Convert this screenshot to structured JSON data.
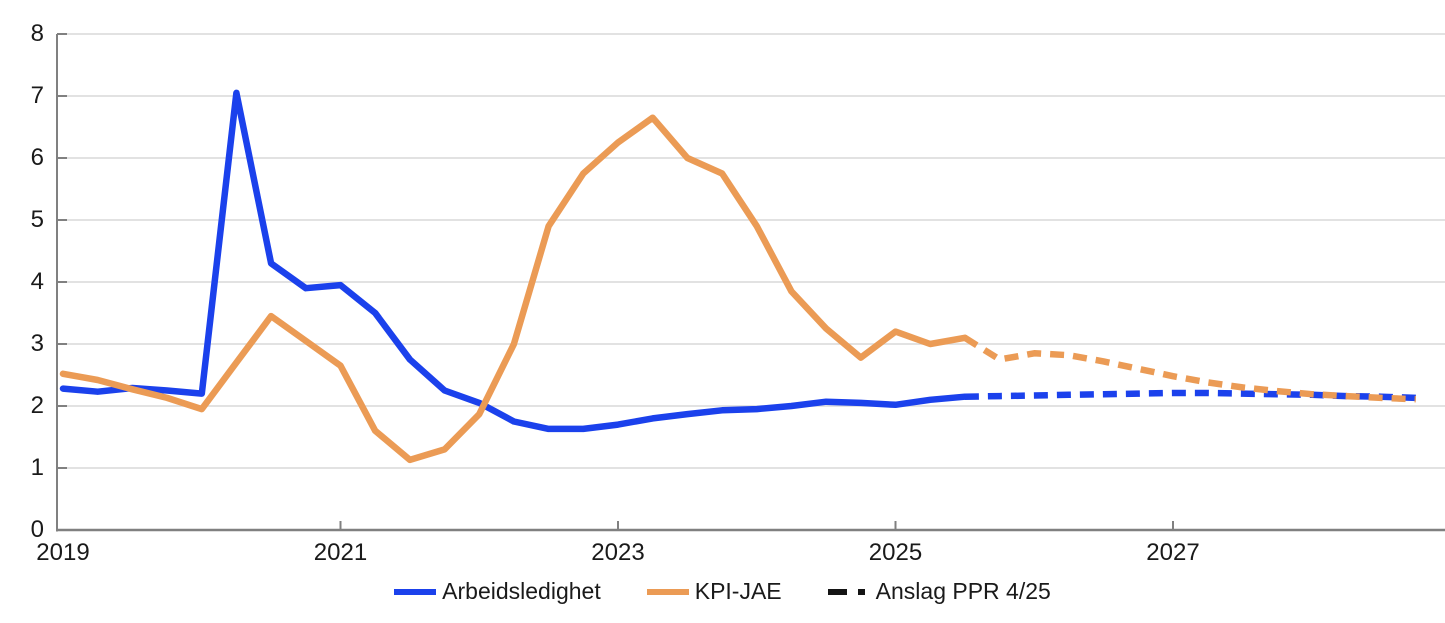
{
  "chart_data": {
    "type": "line",
    "title": "",
    "xlabel": "",
    "ylabel": "",
    "ylim": [
      0,
      8
    ],
    "xlim": [
      2019.0,
      2028.96
    ],
    "yticks": [
      "0",
      "1",
      "2",
      "3",
      "4",
      "5",
      "6",
      "7",
      "8"
    ],
    "ytick_values": [
      0,
      1,
      2,
      3,
      4,
      5,
      6,
      7,
      8
    ],
    "xticks": [
      "2019",
      "2021",
      "2023",
      "2025",
      "2027"
    ],
    "xtick_values": [
      2019,
      2021,
      2023,
      2025,
      2027
    ],
    "grid": true,
    "legend_position": "bottom-center",
    "series": [
      {
        "name": "Arbeidsledighet",
        "style": "solid",
        "color": "#1b41ec",
        "x": [
          2019.0,
          2019.25,
          2019.5,
          2019.75,
          2020.0,
          2020.25,
          2020.5,
          2020.75,
          2021.0,
          2021.25,
          2021.5,
          2021.75,
          2022.0,
          2022.25,
          2022.5,
          2022.75,
          2023.0,
          2023.25,
          2023.5,
          2023.75,
          2024.0,
          2024.25,
          2024.5,
          2024.75,
          2025.0,
          2025.25,
          2025.5
        ],
        "values": [
          2.28,
          2.23,
          2.29,
          2.25,
          2.2,
          7.05,
          4.3,
          3.9,
          3.95,
          3.5,
          2.75,
          2.25,
          2.05,
          1.75,
          1.63,
          1.63,
          1.7,
          1.8,
          1.87,
          1.93,
          1.95,
          2.0,
          2.07,
          2.05,
          2.02,
          2.1,
          2.15
        ]
      },
      {
        "name": "KPI-JAE",
        "style": "solid",
        "color": "#eb9b55",
        "x": [
          2019.0,
          2019.25,
          2019.5,
          2019.75,
          2020.0,
          2020.25,
          2020.5,
          2020.75,
          2021.0,
          2021.25,
          2021.5,
          2021.75,
          2022.0,
          2022.25,
          2022.5,
          2022.75,
          2023.0,
          2023.25,
          2023.5,
          2023.75,
          2024.0,
          2024.25,
          2024.5,
          2024.75,
          2025.0,
          2025.25,
          2025.5
        ],
        "values": [
          2.52,
          2.42,
          2.27,
          2.13,
          1.95,
          2.7,
          3.45,
          3.05,
          2.65,
          1.6,
          1.13,
          1.3,
          1.87,
          3.0,
          4.9,
          5.75,
          6.25,
          6.65,
          6.0,
          5.75,
          4.9,
          3.85,
          3.25,
          2.78,
          3.2,
          3.0,
          3.1
        ]
      },
      {
        "name": "Arbeidsledighet anslag PPR 4/25",
        "style": "dashed",
        "color": "#1b41ec",
        "x": [
          2025.5,
          2025.75,
          2026.0,
          2026.25,
          2026.5,
          2026.75,
          2027.0,
          2027.25,
          2027.5,
          2027.75,
          2028.0,
          2028.25,
          2028.5,
          2028.75
        ],
        "values": [
          2.15,
          2.16,
          2.17,
          2.18,
          2.19,
          2.2,
          2.21,
          2.21,
          2.2,
          2.19,
          2.18,
          2.16,
          2.15,
          2.13
        ]
      },
      {
        "name": "KPI-JAE anslag PPR 4/25",
        "style": "dashed",
        "color": "#eb9b55",
        "x": [
          2025.5,
          2025.75,
          2026.0,
          2026.25,
          2026.5,
          2026.75,
          2027.0,
          2027.25,
          2027.5,
          2027.75,
          2028.0,
          2028.25,
          2028.5,
          2028.75
        ],
        "values": [
          3.1,
          2.75,
          2.85,
          2.82,
          2.72,
          2.6,
          2.48,
          2.38,
          2.3,
          2.24,
          2.19,
          2.16,
          2.13,
          2.11
        ]
      }
    ],
    "legend": [
      {
        "label": "Arbeidsledighet",
        "color": "#1b41ec",
        "style": "solid"
      },
      {
        "label": "KPI-JAE",
        "color": "#eb9b55",
        "style": "solid"
      },
      {
        "label": "Anslag PPR 4/25",
        "color": "#141414",
        "style": "dashed"
      }
    ]
  },
  "colors": {
    "background": "#ffffff",
    "gridline": "#d9d9d9",
    "axis": "#808080",
    "text": "#1a1a1a",
    "unemployment_line": "#1b41ec",
    "cpi_line": "#eb9b55",
    "forecast_legend": "#141414"
  }
}
